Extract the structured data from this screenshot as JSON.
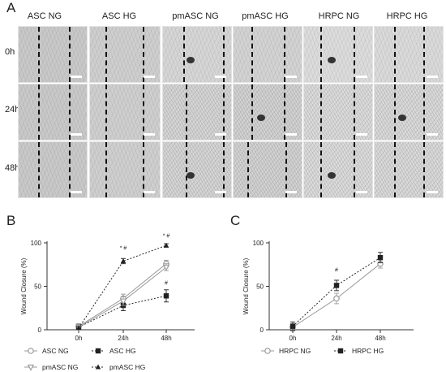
{
  "panel_a": {
    "letter": "A",
    "columns": [
      "ASC NG",
      "ASC HG",
      "pmASC NG",
      "pmASC HG",
      "HRPC NG",
      "HRPC HG"
    ],
    "rows": [
      "0h",
      "24h",
      "48h"
    ]
  },
  "chart_data": [
    {
      "letter": "B",
      "type": "line",
      "categories": [
        "0h",
        "24h",
        "48h"
      ],
      "ylabel": "Wound Closure (%)",
      "yticks": [
        0,
        50,
        100
      ],
      "ylim": [
        0,
        100
      ],
      "series": [
        {
          "name": "ASC NG",
          "marker": "open-circle",
          "line": "solid",
          "color": "#9a9a9a",
          "values": [
            4,
            36,
            76
          ],
          "err": [
            3,
            5,
            4
          ]
        },
        {
          "name": "ASC HG",
          "marker": "filled-square",
          "line": "dotted",
          "color": "#222222",
          "values": [
            3,
            28,
            39
          ],
          "err": [
            3,
            6,
            7
          ]
        },
        {
          "name": "pmASC NG",
          "marker": "open-triangle-down",
          "line": "solid",
          "color": "#9a9a9a",
          "values": [
            3,
            33,
            72
          ],
          "err": [
            3,
            5,
            4
          ]
        },
        {
          "name": "pmASC HG",
          "marker": "filled-triangle-up",
          "line": "dotted",
          "color": "#222222",
          "values": [
            2,
            79,
            97
          ],
          "err": [
            2,
            3,
            2
          ]
        }
      ],
      "annotations": [
        {
          "x": "24h",
          "text": "* #"
        },
        {
          "x": "48h",
          "text": "* #"
        },
        {
          "x": "48h",
          "text": "#"
        }
      ]
    },
    {
      "letter": "C",
      "type": "line",
      "categories": [
        "0h",
        "24h",
        "48h"
      ],
      "ylabel": "Wound Closure (%)",
      "yticks": [
        0,
        50,
        100
      ],
      "ylim": [
        0,
        100
      ],
      "series": [
        {
          "name": "HRPC NG",
          "marker": "open-circle",
          "line": "solid",
          "color": "#9a9a9a",
          "values": [
            3,
            36,
            76
          ],
          "err": [
            4,
            6,
            5
          ]
        },
        {
          "name": "HRPC HG",
          "marker": "filled-square",
          "line": "dotted",
          "color": "#222222",
          "values": [
            4,
            51,
            83
          ],
          "err": [
            5,
            6,
            6
          ]
        }
      ],
      "annotations": [
        {
          "x": "24h",
          "text": "#"
        }
      ]
    }
  ]
}
